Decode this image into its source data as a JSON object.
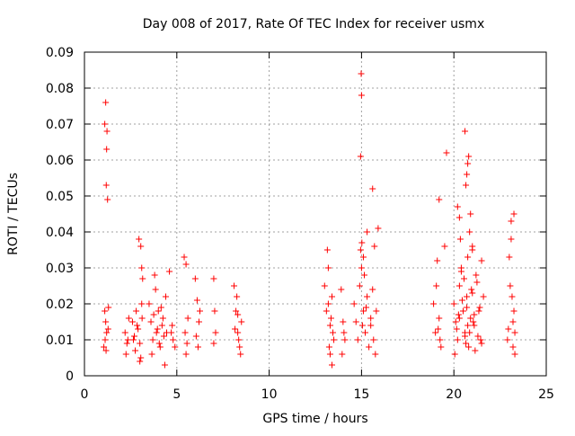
{
  "chart_data": {
    "type": "scatter",
    "title": "Day 008 of 2017, Rate Of TEC Index for receiver usmx",
    "xlabel": "GPS time / hours",
    "ylabel": "ROTI / TECUs",
    "xlim": [
      0,
      25
    ],
    "ylim": [
      0,
      0.09
    ],
    "x_ticks": [
      0,
      5,
      10,
      15,
      20,
      25
    ],
    "x_tick_labels": [
      "0",
      "5",
      "10",
      "15",
      "20",
      "25"
    ],
    "y_ticks": [
      0,
      0.01,
      0.02,
      0.03,
      0.04,
      0.05,
      0.06,
      0.07,
      0.08,
      0.09
    ],
    "y_tick_labels": [
      "0",
      "0.01",
      "0.02",
      "0.03",
      "0.04",
      "0.05",
      "0.06",
      "0.07",
      "0.08",
      "0.09"
    ],
    "grid": true,
    "marker": "+",
    "color": "#ff0000",
    "series": [
      {
        "name": "ROTI",
        "x": [
          1.1,
          1.15,
          1.2,
          1.22,
          1.18,
          1.25,
          1.1,
          1.15,
          1.2,
          1.12,
          1.28,
          1.05,
          1.3,
          1.17,
          2.2,
          2.3,
          2.4,
          2.25,
          2.35,
          2.6,
          2.7,
          2.8,
          2.9,
          3.0,
          3.05,
          3.1,
          3.15,
          2.95,
          3.05,
          3.1,
          2.75,
          2.85,
          3.0,
          3.12,
          2.65,
          3.5,
          3.6,
          3.7,
          3.8,
          3.9,
          4.0,
          4.1,
          4.2,
          4.3,
          4.4,
          3.65,
          3.75,
          3.95,
          4.05,
          4.25,
          4.35,
          4.45,
          3.85,
          4.15,
          4.6,
          4.7,
          4.8,
          4.9,
          4.75,
          5.4,
          5.5,
          5.6,
          5.45,
          5.55,
          5.5,
          6.0,
          6.1,
          6.2,
          6.05,
          6.15,
          6.25,
          7.0,
          7.05,
          7.1,
          7.0,
          8.1,
          8.2,
          8.3,
          8.4,
          8.5,
          8.25,
          8.35,
          8.45,
          8.15,
          8.3,
          13.0,
          13.1,
          13.2,
          13.3,
          13.4,
          13.5,
          13.15,
          13.25,
          13.35,
          13.45,
          13.3,
          13.4,
          13.2,
          13.9,
          14.0,
          14.1,
          14.05,
          13.95,
          14.6,
          14.7,
          14.8,
          14.9,
          15.0,
          15.1,
          15.2,
          15.3,
          15.4,
          15.5,
          14.95,
          15.05,
          15.15,
          15.25,
          14.98,
          15.0,
          14.95,
          15.02,
          15.1,
          15.3,
          15.5,
          15.6,
          15.7,
          15.8,
          15.65,
          15.75,
          15.6,
          15.9,
          18.9,
          19.0,
          19.1,
          19.2,
          19.3,
          19.05,
          19.15,
          19.25,
          19.2,
          19.6,
          20.0,
          20.1,
          20.2,
          20.3,
          20.4,
          20.5,
          20.6,
          20.7,
          20.8,
          20.9,
          21.0,
          21.1,
          21.2,
          21.3,
          21.4,
          21.5,
          20.05,
          20.15,
          20.25,
          20.35,
          20.45,
          20.55,
          20.65,
          20.75,
          20.85,
          20.95,
          21.05,
          21.15,
          21.25,
          21.35,
          21.45,
          20.6,
          20.7,
          20.65,
          20.8,
          20.75,
          20.9,
          20.85,
          21.0,
          20.2,
          20.3,
          21.5,
          21.6,
          20.6,
          20.7,
          20.75,
          21.0,
          21.1,
          19.5,
          20.4,
          20.3,
          22.9,
          23.0,
          23.1,
          23.2,
          23.3,
          23.05,
          23.15,
          23.25,
          23.1,
          23.2,
          23.3,
          23.25,
          22.95
        ],
        "y": [
          0.07,
          0.076,
          0.063,
          0.068,
          0.053,
          0.049,
          0.018,
          0.015,
          0.012,
          0.01,
          0.013,
          0.008,
          0.019,
          0.007,
          0.012,
          0.009,
          0.016,
          0.006,
          0.01,
          0.015,
          0.011,
          0.018,
          0.013,
          0.009,
          0.005,
          0.02,
          0.027,
          0.038,
          0.036,
          0.03,
          0.007,
          0.014,
          0.004,
          0.016,
          0.01,
          0.02,
          0.015,
          0.01,
          0.028,
          0.012,
          0.018,
          0.008,
          0.014,
          0.011,
          0.022,
          0.006,
          0.017,
          0.013,
          0.009,
          0.016,
          0.003,
          0.012,
          0.024,
          0.019,
          0.029,
          0.012,
          0.01,
          0.008,
          0.014,
          0.033,
          0.031,
          0.016,
          0.012,
          0.009,
          0.006,
          0.027,
          0.021,
          0.015,
          0.011,
          0.008,
          0.018,
          0.027,
          0.018,
          0.012,
          0.009,
          0.025,
          0.018,
          0.012,
          0.008,
          0.015,
          0.022,
          0.01,
          0.006,
          0.013,
          0.017,
          0.025,
          0.018,
          0.03,
          0.014,
          0.022,
          0.01,
          0.035,
          0.008,
          0.016,
          0.012,
          0.006,
          0.003,
          0.02,
          0.024,
          0.015,
          0.01,
          0.012,
          0.006,
          0.02,
          0.015,
          0.01,
          0.025,
          0.03,
          0.018,
          0.012,
          0.022,
          0.008,
          0.016,
          0.035,
          0.014,
          0.028,
          0.019,
          0.084,
          0.078,
          0.061,
          0.037,
          0.033,
          0.04,
          0.014,
          0.052,
          0.036,
          0.018,
          0.01,
          0.006,
          0.024,
          0.041,
          0.02,
          0.012,
          0.032,
          0.016,
          0.008,
          0.025,
          0.013,
          0.01,
          0.049,
          0.062,
          0.02,
          0.015,
          0.01,
          0.025,
          0.03,
          0.018,
          0.012,
          0.022,
          0.008,
          0.016,
          0.035,
          0.014,
          0.028,
          0.011,
          0.019,
          0.009,
          0.006,
          0.013,
          0.017,
          0.038,
          0.021,
          0.027,
          0.009,
          0.033,
          0.012,
          0.024,
          0.015,
          0.007,
          0.026,
          0.018,
          0.01,
          0.068,
          0.056,
          0.053,
          0.061,
          0.059,
          0.045,
          0.04,
          0.036,
          0.047,
          0.044,
          0.032,
          0.022,
          0.011,
          0.019,
          0.014,
          0.023,
          0.017,
          0.036,
          0.029,
          0.016,
          0.01,
          0.033,
          0.038,
          0.015,
          0.012,
          0.025,
          0.022,
          0.045,
          0.043,
          0.008,
          0.006,
          0.018,
          0.013
        ]
      }
    ]
  }
}
